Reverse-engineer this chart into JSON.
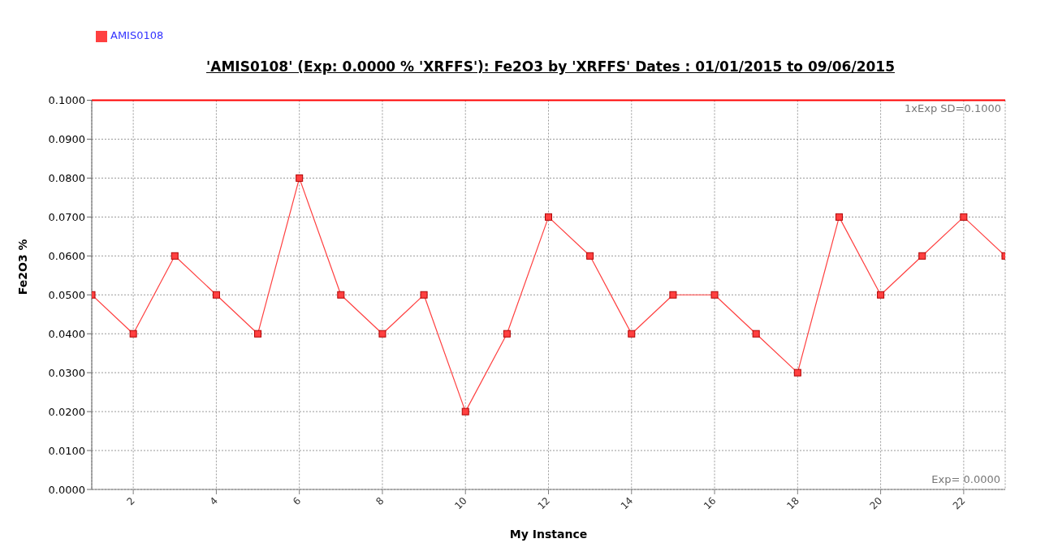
{
  "chart_data": {
    "type": "line",
    "title": "'AMIS0108' (Exp: 0.0000 % 'XRFFS'): Fe2O3 by 'XRFFS' Dates : 01/01/2015 to 09/06/2015",
    "xlabel": "My Instance",
    "ylabel": "Fe2O3 %",
    "x": [
      1,
      2,
      3,
      4,
      5,
      6,
      7,
      8,
      9,
      10,
      11,
      12,
      13,
      14,
      15,
      16,
      17,
      18,
      19,
      20,
      21,
      22,
      23
    ],
    "series": [
      {
        "name": "AMIS0108",
        "color": "#ff4040",
        "values": [
          0.05,
          0.04,
          0.06,
          0.05,
          0.04,
          0.08,
          0.05,
          0.04,
          0.05,
          0.02,
          0.04,
          0.07,
          0.06,
          0.04,
          0.05,
          0.05,
          0.04,
          0.03,
          0.07,
          0.05,
          0.06,
          0.07,
          0.06
        ]
      }
    ],
    "xlim": [
      1,
      23
    ],
    "xticks": [
      2,
      4,
      6,
      8,
      10,
      12,
      14,
      16,
      18,
      20,
      22
    ],
    "ylim": [
      0,
      0.1
    ],
    "yticks": [
      {
        "value": 0,
        "label": "0.0000"
      },
      {
        "value": 0.01,
        "label": "0.0100"
      },
      {
        "value": 0.02,
        "label": "0.0200"
      },
      {
        "value": 0.03,
        "label": "0.0300"
      },
      {
        "value": 0.04,
        "label": "0.0400"
      },
      {
        "value": 0.05,
        "label": "0.0500"
      },
      {
        "value": 0.06,
        "label": "0.0600"
      },
      {
        "value": 0.07,
        "label": "0.0700"
      },
      {
        "value": 0.08,
        "label": "0.0800"
      },
      {
        "value": 0.09,
        "label": "0.0900"
      },
      {
        "value": 0.1,
        "label": "0.1000"
      }
    ],
    "ref_lines": [
      {
        "axis": "y",
        "value": 0.1,
        "label": "1xExp SD=0.1000",
        "color": "#ff0000"
      }
    ],
    "annotations": [
      "Exp= 0.0000"
    ],
    "grid": true,
    "legend": "top left",
    "marker": "square",
    "line_style": "solid"
  }
}
